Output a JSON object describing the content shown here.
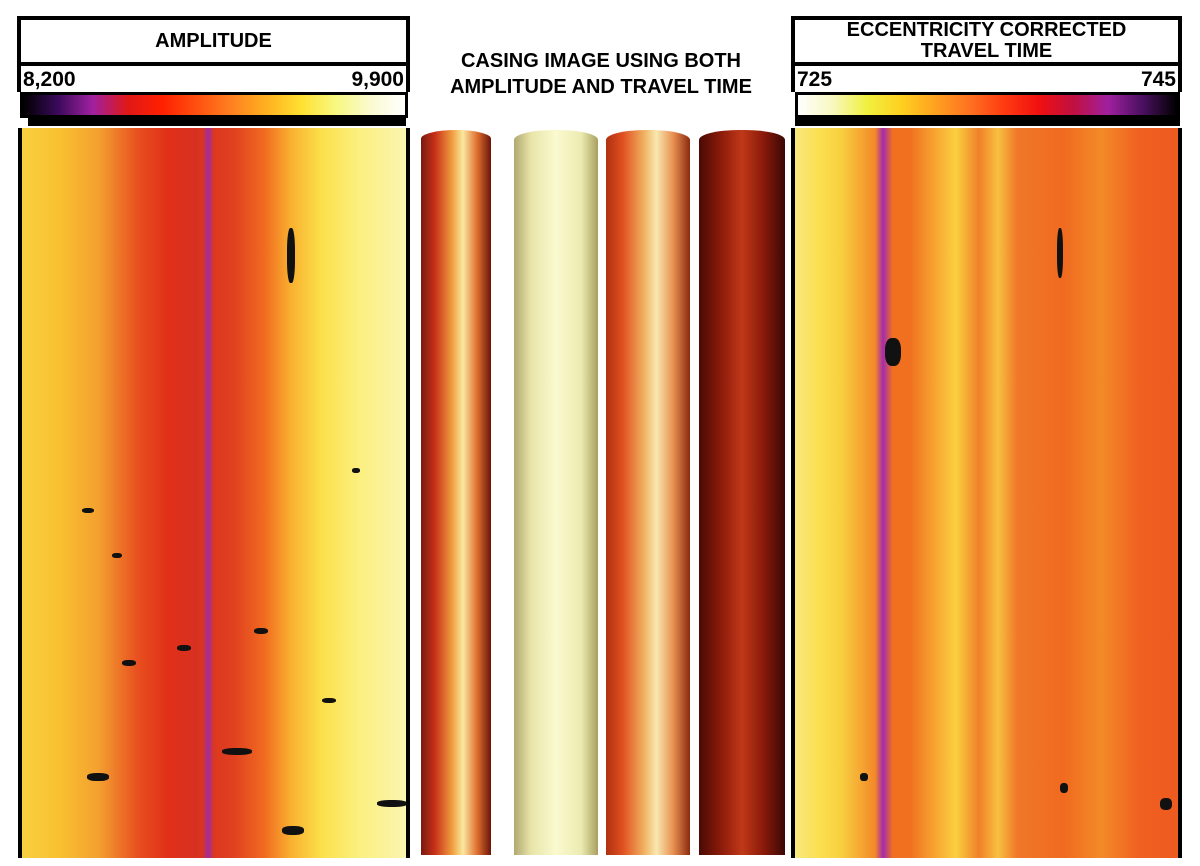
{
  "panels": {
    "amplitude": {
      "title": "AMPLITUDE",
      "scale_min": "8,200",
      "scale_max": "9,900",
      "colormap": [
        "#000000",
        "#3a0a5a",
        "#a020a0",
        "#e01818",
        "#ff2000",
        "#ff5010",
        "#ff8020",
        "#ffb020",
        "#ffe030",
        "#f8f880",
        "#fafad0",
        "#ffffff"
      ]
    },
    "casing": {
      "title_line1": "CASING IMAGE USING BOTH",
      "title_line2": "AMPLITUDE AND TRAVEL TIME"
    },
    "travel_time": {
      "title_line1": "ECCENTRICITY CORRECTED",
      "title_line2": "TRAVEL TIME",
      "scale_min": "725",
      "scale_max": "745",
      "colormap": [
        "#ffffff",
        "#f8f8c0",
        "#f0f040",
        "#ffd020",
        "#ffa020",
        "#ff7020",
        "#ff3a10",
        "#f01010",
        "#c01040",
        "#a020a0",
        "#4a1060",
        "#000000"
      ]
    }
  }
}
